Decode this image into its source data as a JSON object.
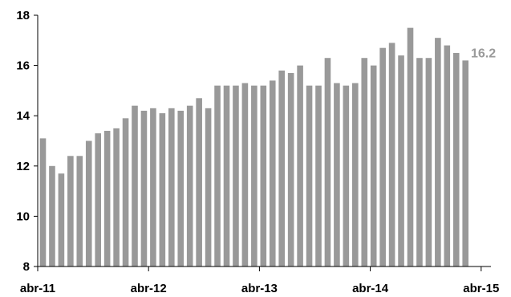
{
  "chart_data": {
    "type": "bar",
    "title": "",
    "xlabel": "",
    "ylabel": "",
    "ylim": [
      8,
      18
    ],
    "yticks": [
      8,
      10,
      12,
      14,
      16,
      18
    ],
    "x_tick_labels": [
      "abr-11",
      "abr-12",
      "abr-13",
      "abr-14",
      "abr-15"
    ],
    "grid": false,
    "bar_color": "#999999",
    "values": [
      13.1,
      12.0,
      11.7,
      12.4,
      12.4,
      13.0,
      13.3,
      13.4,
      13.5,
      13.9,
      14.4,
      14.2,
      14.3,
      14.1,
      14.3,
      14.2,
      14.4,
      14.7,
      14.3,
      15.2,
      15.2,
      15.2,
      15.3,
      15.2,
      15.2,
      15.4,
      15.8,
      15.7,
      16.0,
      15.2,
      15.2,
      16.3,
      15.3,
      15.2,
      15.3,
      16.3,
      16.0,
      16.7,
      16.9,
      16.4,
      17.5,
      16.3,
      16.3,
      17.1,
      16.8,
      16.5,
      16.2
    ],
    "last_value_label": "16.2"
  }
}
